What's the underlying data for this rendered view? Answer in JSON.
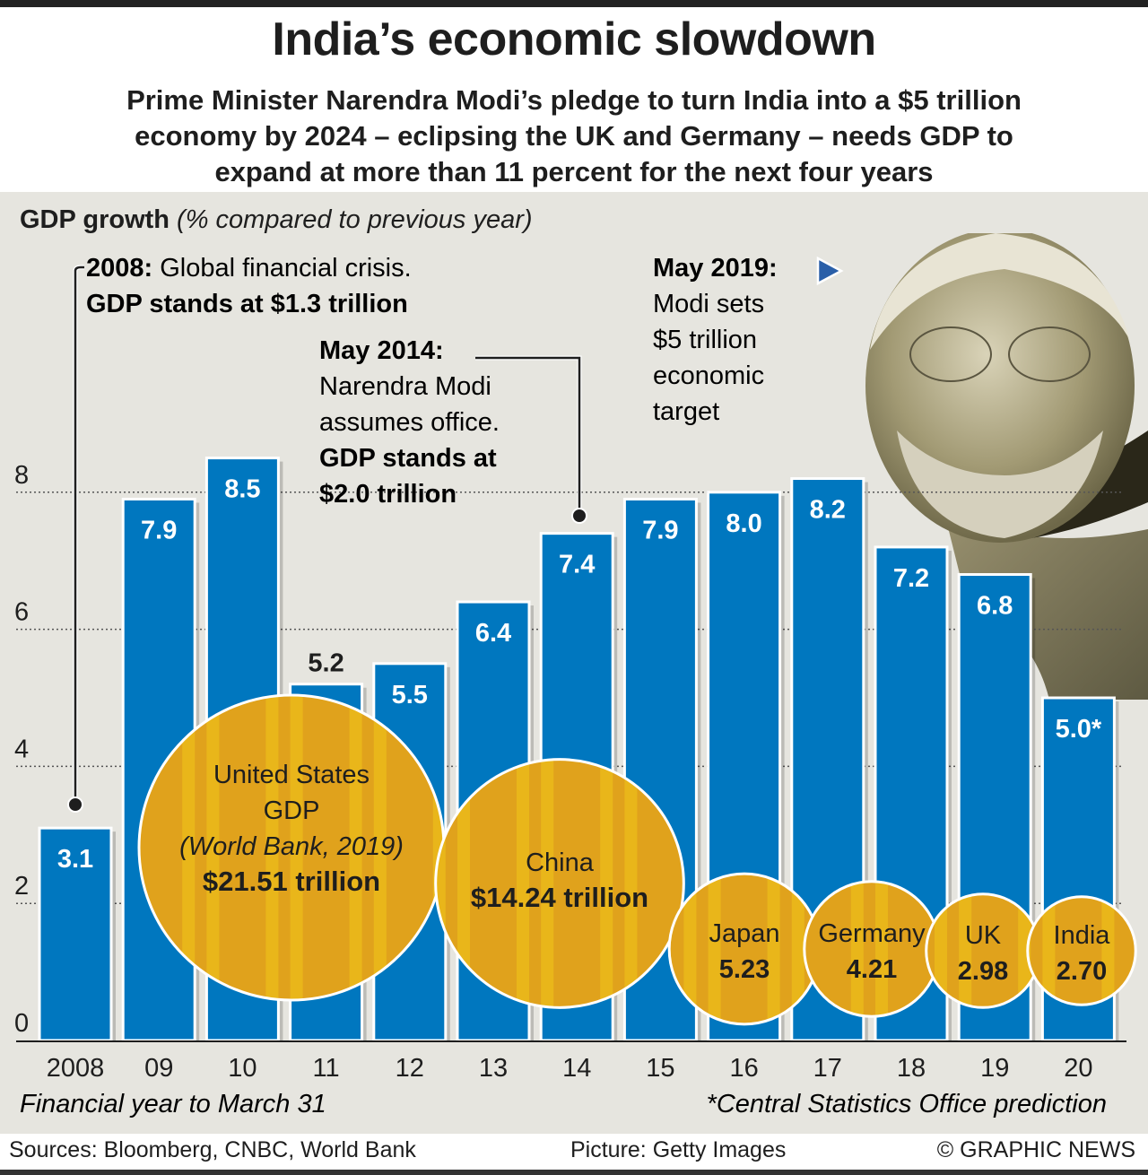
{
  "header": {
    "title": "India’s economic slowdown",
    "subtitle_lines": [
      "Prime Minister Narendra Modi’s pledge to turn India into a $5 trillion",
      "economy by 2024 – eclipsing the UK and Germany – needs GDP to",
      "expand at more than 11 percent for the next four years"
    ]
  },
  "colors": {
    "bar": "#0077bf",
    "bubble": "#e0a21c",
    "bubble_stripe": "#ebbb1a",
    "panel_bg": "#e6e5df",
    "text": "#1e1e1e"
  },
  "annotations": {
    "a2008": {
      "bold": "2008:",
      "text": " Global financial crisis.",
      "line2": "GDP stands at $1.3 trillion"
    },
    "a2014": {
      "bold": "May 2014:",
      "lines": [
        "Narendra Modi",
        "assumes office."
      ],
      "bold_lines": [
        "GDP stands at",
        "$2.0 trillion"
      ]
    },
    "a2019": {
      "bold": "May 2019:",
      "lines": [
        "Modi sets",
        "$5 trillion",
        "economic",
        "target"
      ]
    },
    "portrait_label": "Narendra Modi portrait"
  },
  "chart_data": {
    "type": "bar",
    "title": "GDP growth",
    "title_note": "(% compared to previous year)",
    "categories": [
      "2008",
      "09",
      "10",
      "11",
      "12",
      "13",
      "14",
      "15",
      "16",
      "17",
      "18",
      "19",
      "20"
    ],
    "values": [
      3.1,
      7.9,
      8.5,
      5.2,
      5.5,
      6.4,
      7.4,
      7.9,
      8.0,
      8.2,
      7.2,
      6.8,
      5.0
    ],
    "value_labels": [
      "3.1",
      "7.9",
      "8.5",
      "5.2",
      "5.5",
      "6.4",
      "7.4",
      "7.9",
      "8.0",
      "8.2",
      "7.2",
      "6.8",
      "5.0*"
    ],
    "ylim": [
      0,
      9
    ],
    "yticks": [
      0,
      2,
      4,
      6,
      8
    ],
    "grid": "dotted horizontal",
    "xlabel": "Financial year to March 31",
    "footnote": "*Central Statistics Office prediction",
    "bubbles": {
      "title": "GDP (World Bank, 2019), $ trillion",
      "items": [
        {
          "name": "United States",
          "lines": [
            "United States",
            "GDP"
          ],
          "note": "(World Bank, 2019)",
          "value": 21.51,
          "label": "$21.51 trillion"
        },
        {
          "name": "China",
          "lines": [
            "China"
          ],
          "note": "",
          "value": 14.24,
          "label": "$14.24 trillion"
        },
        {
          "name": "Japan",
          "lines": [
            "Japan"
          ],
          "note": "",
          "value": 5.23,
          "label": "5.23"
        },
        {
          "name": "Germany",
          "lines": [
            "Germany"
          ],
          "note": "",
          "value": 4.21,
          "label": "4.21"
        },
        {
          "name": "UK",
          "lines": [
            "UK"
          ],
          "note": "",
          "value": 2.98,
          "label": "2.98"
        },
        {
          "name": "India",
          "lines": [
            "India"
          ],
          "note": "",
          "value": 2.7,
          "label": "2.70"
        }
      ]
    }
  },
  "footer": {
    "sources": "Sources: Bloomberg, CNBC, World Bank",
    "picture": "Picture: Getty Images",
    "credit": "© GRAPHIC NEWS"
  }
}
